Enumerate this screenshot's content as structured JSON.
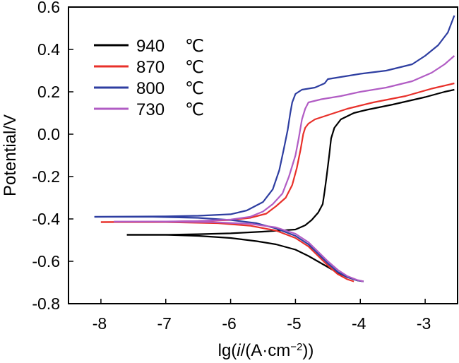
{
  "chart_data": {
    "type": "line",
    "xlabel_parts": [
      "lg(",
      "i",
      "/(A·cm",
      "−2",
      "))"
    ],
    "ylabel": "Potential/V",
    "xlim": [
      -8.5,
      -2.5
    ],
    "ylim": [
      -0.8,
      0.6
    ],
    "x_ticks": [
      -8,
      -7,
      -6,
      -5,
      -4,
      -3
    ],
    "x_tick_labels": [
      "-8",
      "-7",
      "-6",
      "-5",
      "-4",
      "-3"
    ],
    "y_ticks": [
      -0.8,
      -0.6,
      -0.4,
      -0.2,
      0.0,
      0.2,
      0.4,
      0.6
    ],
    "y_tick_labels": [
      "-0.8",
      "-0.6",
      "-0.4",
      "-0.2",
      "0.0",
      "0.2",
      "0.4",
      "0.6"
    ],
    "legend_position": "top-left",
    "series": [
      {
        "name": "940",
        "unit": "℃",
        "color": "#000000",
        "cathodic": [
          [
            -3.95,
            -0.695
          ],
          [
            -4.05,
            -0.69
          ],
          [
            -4.2,
            -0.675
          ],
          [
            -4.4,
            -0.645
          ],
          [
            -4.6,
            -0.61
          ],
          [
            -4.8,
            -0.575
          ],
          [
            -5.0,
            -0.545
          ],
          [
            -5.3,
            -0.52
          ],
          [
            -5.6,
            -0.505
          ],
          [
            -6.0,
            -0.49
          ],
          [
            -6.5,
            -0.48
          ],
          [
            -7.0,
            -0.475
          ],
          [
            -7.6,
            -0.475
          ]
        ],
        "anodic": [
          [
            -7.6,
            -0.475
          ],
          [
            -7.0,
            -0.475
          ],
          [
            -6.5,
            -0.472
          ],
          [
            -6.0,
            -0.468
          ],
          [
            -5.5,
            -0.46
          ],
          [
            -5.0,
            -0.45
          ],
          [
            -4.85,
            -0.43
          ],
          [
            -4.75,
            -0.405
          ],
          [
            -4.65,
            -0.37
          ],
          [
            -4.58,
            -0.33
          ],
          [
            -4.55,
            -0.27
          ],
          [
            -4.52,
            -0.2
          ],
          [
            -4.48,
            -0.1
          ],
          [
            -4.45,
            -0.02
          ],
          [
            -4.4,
            0.03
          ],
          [
            -4.3,
            0.07
          ],
          [
            -4.1,
            0.1
          ],
          [
            -3.9,
            0.115
          ],
          [
            -3.5,
            0.14
          ],
          [
            -3.0,
            0.175
          ],
          [
            -2.7,
            0.2
          ],
          [
            -2.55,
            0.21
          ]
        ]
      },
      {
        "name": "870",
        "unit": "℃",
        "color": "#e8302a",
        "cathodic": [
          [
            -4.1,
            -0.695
          ],
          [
            -4.2,
            -0.685
          ],
          [
            -4.35,
            -0.66
          ],
          [
            -4.5,
            -0.62
          ],
          [
            -4.65,
            -0.575
          ],
          [
            -4.8,
            -0.53
          ],
          [
            -5.0,
            -0.49
          ],
          [
            -5.3,
            -0.455
          ],
          [
            -5.7,
            -0.432
          ],
          [
            -6.2,
            -0.42
          ],
          [
            -7.0,
            -0.415
          ],
          [
            -8.0,
            -0.415
          ]
        ],
        "anodic": [
          [
            -8.0,
            -0.415
          ],
          [
            -7.0,
            -0.413
          ],
          [
            -6.5,
            -0.41
          ],
          [
            -6.0,
            -0.405
          ],
          [
            -5.7,
            -0.395
          ],
          [
            -5.45,
            -0.375
          ],
          [
            -5.3,
            -0.34
          ],
          [
            -5.15,
            -0.3
          ],
          [
            -5.05,
            -0.24
          ],
          [
            -4.98,
            -0.16
          ],
          [
            -4.92,
            -0.07
          ],
          [
            -4.88,
            0.0
          ],
          [
            -4.85,
            0.03
          ],
          [
            -4.8,
            0.05
          ],
          [
            -4.7,
            0.07
          ],
          [
            -4.5,
            0.09
          ],
          [
            -4.2,
            0.12
          ],
          [
            -3.8,
            0.15
          ],
          [
            -3.3,
            0.18
          ],
          [
            -2.9,
            0.215
          ],
          [
            -2.55,
            0.24
          ]
        ]
      },
      {
        "name": "800",
        "unit": "℃",
        "color": "#2e3ea1",
        "cathodic": [
          [
            -3.95,
            -0.695
          ],
          [
            -4.05,
            -0.69
          ],
          [
            -4.2,
            -0.675
          ],
          [
            -4.35,
            -0.65
          ],
          [
            -4.5,
            -0.61
          ],
          [
            -4.65,
            -0.565
          ],
          [
            -4.8,
            -0.52
          ],
          [
            -5.0,
            -0.48
          ],
          [
            -5.3,
            -0.445
          ],
          [
            -5.6,
            -0.42
          ],
          [
            -6.0,
            -0.405
          ],
          [
            -6.5,
            -0.395
          ],
          [
            -7.2,
            -0.39
          ],
          [
            -8.1,
            -0.39
          ]
        ],
        "anodic": [
          [
            -8.1,
            -0.39
          ],
          [
            -7.0,
            -0.388
          ],
          [
            -6.5,
            -0.385
          ],
          [
            -6.0,
            -0.378
          ],
          [
            -5.75,
            -0.36
          ],
          [
            -5.5,
            -0.32
          ],
          [
            -5.35,
            -0.26
          ],
          [
            -5.25,
            -0.17
          ],
          [
            -5.18,
            -0.07
          ],
          [
            -5.12,
            0.02
          ],
          [
            -5.08,
            0.1
          ],
          [
            -5.05,
            0.15
          ],
          [
            -5.0,
            0.19
          ],
          [
            -4.9,
            0.21
          ],
          [
            -4.7,
            0.22
          ],
          [
            -4.55,
            0.24
          ],
          [
            -4.5,
            0.26
          ],
          [
            -4.3,
            0.27
          ],
          [
            -4.0,
            0.285
          ],
          [
            -3.6,
            0.3
          ],
          [
            -3.2,
            0.33
          ],
          [
            -3.0,
            0.37
          ],
          [
            -2.8,
            0.42
          ],
          [
            -2.65,
            0.48
          ],
          [
            -2.55,
            0.56
          ]
        ]
      },
      {
        "name": "730",
        "unit": "℃",
        "color": "#b15cc4",
        "cathodic": [
          [
            -3.95,
            -0.695
          ],
          [
            -4.05,
            -0.688
          ],
          [
            -4.2,
            -0.67
          ],
          [
            -4.35,
            -0.64
          ],
          [
            -4.5,
            -0.6
          ],
          [
            -4.65,
            -0.555
          ],
          [
            -4.8,
            -0.51
          ],
          [
            -5.0,
            -0.47
          ],
          [
            -5.3,
            -0.44
          ],
          [
            -5.7,
            -0.423
          ],
          [
            -6.3,
            -0.415
          ],
          [
            -7.2,
            -0.413
          ],
          [
            -7.8,
            -0.413
          ]
        ],
        "anodic": [
          [
            -7.8,
            -0.413
          ],
          [
            -7.0,
            -0.412
          ],
          [
            -6.5,
            -0.41
          ],
          [
            -6.0,
            -0.403
          ],
          [
            -5.7,
            -0.39
          ],
          [
            -5.5,
            -0.365
          ],
          [
            -5.35,
            -0.33
          ],
          [
            -5.2,
            -0.28
          ],
          [
            -5.1,
            -0.2
          ],
          [
            -5.0,
            -0.1
          ],
          [
            -4.95,
            -0.02
          ],
          [
            -4.9,
            0.07
          ],
          [
            -4.85,
            0.12
          ],
          [
            -4.8,
            0.15
          ],
          [
            -4.6,
            0.165
          ],
          [
            -4.3,
            0.18
          ],
          [
            -4.0,
            0.2
          ],
          [
            -3.6,
            0.22
          ],
          [
            -3.2,
            0.25
          ],
          [
            -2.9,
            0.29
          ],
          [
            -2.7,
            0.33
          ],
          [
            -2.55,
            0.37
          ]
        ]
      }
    ]
  }
}
